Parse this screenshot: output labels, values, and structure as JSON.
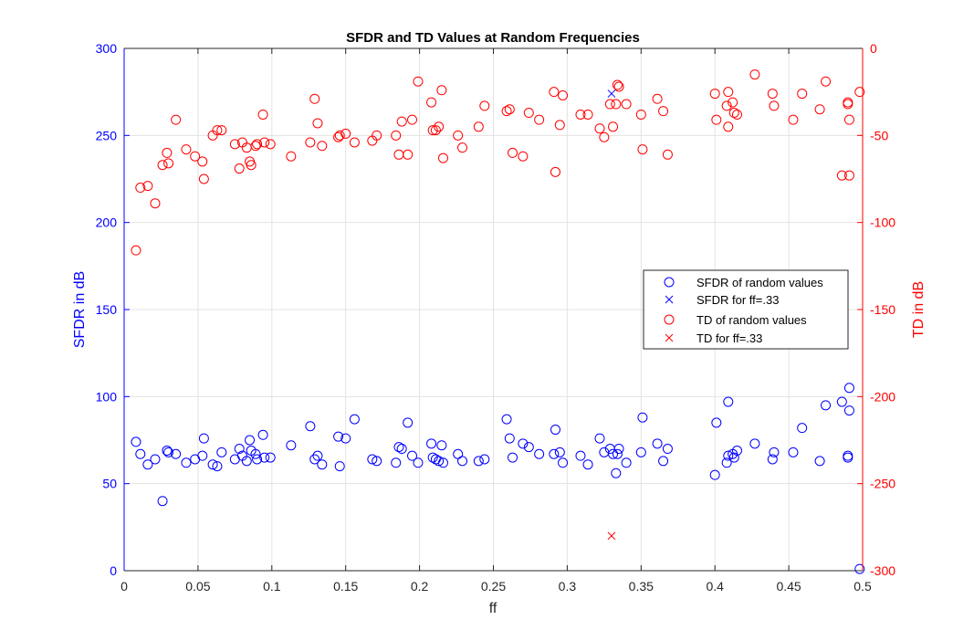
{
  "chart_data": {
    "type": "scatter",
    "title": "SFDR and TD Values at Random Frequencies",
    "xlabel": "ff",
    "ylabel_left": "SFDR in dB",
    "ylabel_right": "TD in dB",
    "xlim": [
      0,
      0.5
    ],
    "ylim_left": [
      0,
      300
    ],
    "ylim_right": [
      -300,
      0
    ],
    "x_ticks": [
      "0",
      "0.05",
      "0.1",
      "0.15",
      "0.2",
      "0.25",
      "0.3",
      "0.35",
      "0.4",
      "0.45",
      "0.5"
    ],
    "y_ticks_left": [
      "0",
      "50",
      "100",
      "150",
      "200",
      "250",
      "300"
    ],
    "y_ticks_right": [
      "-300",
      "-250",
      "-200",
      "-150",
      "-100",
      "-50",
      "0"
    ],
    "grid": true,
    "legend_position": "right",
    "colors": {
      "sfdr": "#0000ff",
      "td": "#ff0000",
      "grid": "#e3e3e3",
      "axis": "#262626"
    },
    "series": [
      {
        "name": "SFDR of random values",
        "axis": "left",
        "marker": "circle",
        "color": "#0000ff",
        "points": [
          [
            0.008,
            74
          ],
          [
            0.011,
            67
          ],
          [
            0.016,
            61
          ],
          [
            0.021,
            64
          ],
          [
            0.026,
            40
          ],
          [
            0.029,
            69
          ],
          [
            0.03,
            68
          ],
          [
            0.035,
            67
          ],
          [
            0.042,
            62
          ],
          [
            0.048,
            64
          ],
          [
            0.053,
            66
          ],
          [
            0.054,
            76
          ],
          [
            0.06,
            61
          ],
          [
            0.063,
            60
          ],
          [
            0.066,
            68
          ],
          [
            0.075,
            64
          ],
          [
            0.078,
            70
          ],
          [
            0.08,
            66
          ],
          [
            0.083,
            63
          ],
          [
            0.085,
            75
          ],
          [
            0.086,
            69
          ],
          [
            0.089,
            67
          ],
          [
            0.09,
            64
          ],
          [
            0.094,
            78
          ],
          [
            0.095,
            65
          ],
          [
            0.099,
            65
          ],
          [
            0.113,
            72
          ],
          [
            0.126,
            83
          ],
          [
            0.129,
            64
          ],
          [
            0.131,
            66
          ],
          [
            0.134,
            61
          ],
          [
            0.145,
            77
          ],
          [
            0.146,
            60
          ],
          [
            0.15,
            76
          ],
          [
            0.156,
            87
          ],
          [
            0.168,
            64
          ],
          [
            0.171,
            63
          ],
          [
            0.184,
            62
          ],
          [
            0.186,
            71
          ],
          [
            0.188,
            70
          ],
          [
            0.192,
            85
          ],
          [
            0.195,
            66
          ],
          [
            0.199,
            62
          ],
          [
            0.208,
            73
          ],
          [
            0.209,
            65
          ],
          [
            0.211,
            64
          ],
          [
            0.213,
            63
          ],
          [
            0.215,
            72
          ],
          [
            0.216,
            62
          ],
          [
            0.226,
            67
          ],
          [
            0.229,
            63
          ],
          [
            0.24,
            63
          ],
          [
            0.244,
            64
          ],
          [
            0.259,
            87
          ],
          [
            0.261,
            76
          ],
          [
            0.263,
            65
          ],
          [
            0.27,
            73
          ],
          [
            0.274,
            71
          ],
          [
            0.281,
            67
          ],
          [
            0.291,
            67
          ],
          [
            0.292,
            81
          ],
          [
            0.295,
            68
          ],
          [
            0.297,
            62
          ],
          [
            0.309,
            66
          ],
          [
            0.314,
            61
          ],
          [
            0.322,
            76
          ],
          [
            0.325,
            68
          ],
          [
            0.329,
            70
          ],
          [
            0.331,
            67
          ],
          [
            0.333,
            56
          ],
          [
            0.334,
            67
          ],
          [
            0.335,
            70
          ],
          [
            0.34,
            62
          ],
          [
            0.35,
            68
          ],
          [
            0.351,
            88
          ],
          [
            0.361,
            73
          ],
          [
            0.365,
            63
          ],
          [
            0.368,
            70
          ],
          [
            0.4,
            55
          ],
          [
            0.401,
            85
          ],
          [
            0.408,
            62
          ],
          [
            0.409,
            66
          ],
          [
            0.409,
            97
          ],
          [
            0.412,
            67
          ],
          [
            0.413,
            65
          ],
          [
            0.415,
            69
          ],
          [
            0.427,
            73
          ],
          [
            0.439,
            64
          ],
          [
            0.44,
            68
          ],
          [
            0.453,
            68
          ],
          [
            0.459,
            82
          ],
          [
            0.471,
            63
          ],
          [
            0.475,
            95
          ],
          [
            0.486,
            97
          ],
          [
            0.49,
            66
          ],
          [
            0.49,
            65
          ],
          [
            0.491,
            92
          ],
          [
            0.491,
            105
          ],
          [
            0.498,
            1
          ]
        ]
      },
      {
        "name": "SFDR for ff=.33",
        "axis": "left",
        "marker": "cross",
        "color": "#0000ff",
        "points": [
          [
            0.33,
            274
          ]
        ]
      },
      {
        "name": "TD of random values",
        "axis": "right",
        "marker": "circle",
        "color": "#ff0000",
        "points": [
          [
            0.008,
            -116
          ],
          [
            0.011,
            -80
          ],
          [
            0.016,
            -79
          ],
          [
            0.021,
            -89
          ],
          [
            0.026,
            -67
          ],
          [
            0.029,
            -60
          ],
          [
            0.03,
            -66
          ],
          [
            0.035,
            -41
          ],
          [
            0.042,
            -58
          ],
          [
            0.048,
            -62
          ],
          [
            0.053,
            -65
          ],
          [
            0.054,
            -75
          ],
          [
            0.06,
            -50
          ],
          [
            0.063,
            -47
          ],
          [
            0.066,
            -47
          ],
          [
            0.075,
            -55
          ],
          [
            0.078,
            -69
          ],
          [
            0.08,
            -54
          ],
          [
            0.083,
            -57
          ],
          [
            0.085,
            -65
          ],
          [
            0.086,
            -67
          ],
          [
            0.089,
            -56
          ],
          [
            0.09,
            -55
          ],
          [
            0.094,
            -38
          ],
          [
            0.095,
            -54
          ],
          [
            0.099,
            -55
          ],
          [
            0.113,
            -62
          ],
          [
            0.126,
            -54
          ],
          [
            0.129,
            -29
          ],
          [
            0.131,
            -43
          ],
          [
            0.134,
            -56
          ],
          [
            0.145,
            -51
          ],
          [
            0.146,
            -50
          ],
          [
            0.15,
            -49
          ],
          [
            0.156,
            -54
          ],
          [
            0.168,
            -53
          ],
          [
            0.171,
            -50
          ],
          [
            0.184,
            -50
          ],
          [
            0.186,
            -61
          ],
          [
            0.188,
            -42
          ],
          [
            0.192,
            -61
          ],
          [
            0.195,
            -41
          ],
          [
            0.199,
            -19
          ],
          [
            0.208,
            -31
          ],
          [
            0.209,
            -47
          ],
          [
            0.211,
            -47
          ],
          [
            0.213,
            -45
          ],
          [
            0.215,
            -24
          ],
          [
            0.216,
            -63
          ],
          [
            0.226,
            -50
          ],
          [
            0.229,
            -57
          ],
          [
            0.24,
            -45
          ],
          [
            0.244,
            -33
          ],
          [
            0.259,
            -36
          ],
          [
            0.261,
            -35
          ],
          [
            0.263,
            -60
          ],
          [
            0.27,
            -62
          ],
          [
            0.274,
            -37
          ],
          [
            0.281,
            -41
          ],
          [
            0.291,
            -25
          ],
          [
            0.292,
            -71
          ],
          [
            0.295,
            -44
          ],
          [
            0.297,
            -27
          ],
          [
            0.309,
            -38
          ],
          [
            0.314,
            -38
          ],
          [
            0.322,
            -46
          ],
          [
            0.325,
            -51
          ],
          [
            0.329,
            -32
          ],
          [
            0.331,
            -45
          ],
          [
            0.333,
            -32
          ],
          [
            0.334,
            -21
          ],
          [
            0.335,
            -22
          ],
          [
            0.34,
            -32
          ],
          [
            0.35,
            -38
          ],
          [
            0.351,
            -58
          ],
          [
            0.361,
            -29
          ],
          [
            0.365,
            -36
          ],
          [
            0.368,
            -61
          ],
          [
            0.4,
            -26
          ],
          [
            0.401,
            -41
          ],
          [
            0.408,
            -33
          ],
          [
            0.409,
            -25
          ],
          [
            0.409,
            -45
          ],
          [
            0.412,
            -31
          ],
          [
            0.413,
            -37
          ],
          [
            0.415,
            -38
          ],
          [
            0.427,
            -15
          ],
          [
            0.439,
            -26
          ],
          [
            0.44,
            -33
          ],
          [
            0.453,
            -41
          ],
          [
            0.459,
            -26
          ],
          [
            0.471,
            -35
          ],
          [
            0.475,
            -19
          ],
          [
            0.486,
            -73
          ],
          [
            0.49,
            -31
          ],
          [
            0.49,
            -32
          ],
          [
            0.491,
            -73
          ],
          [
            0.491,
            -41
          ],
          [
            0.498,
            -25
          ]
        ]
      },
      {
        "name": "TD for ff=.33",
        "axis": "right",
        "marker": "cross",
        "color": "#ff0000",
        "points": [
          [
            0.33,
            -280
          ]
        ]
      }
    ]
  }
}
